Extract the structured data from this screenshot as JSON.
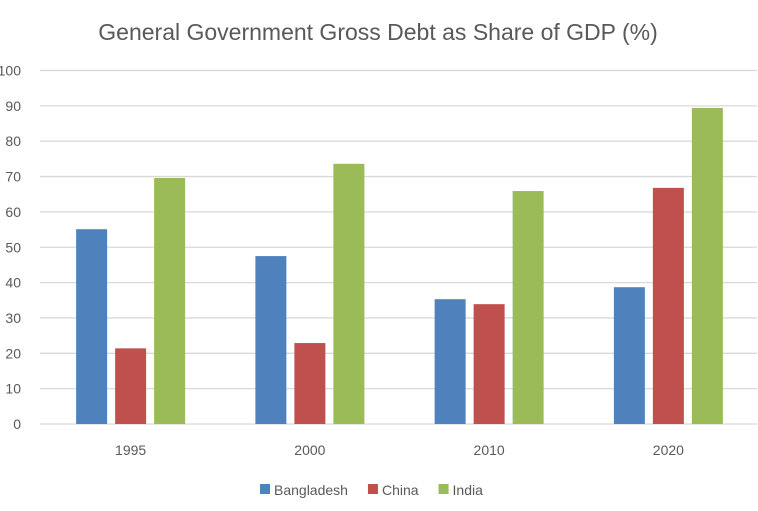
{
  "chart_data": {
    "type": "bar",
    "title": "General Government Gross Debt as Share of GDP (%)",
    "xlabel": "",
    "ylabel": "",
    "categories": [
      "1995",
      "2000",
      "2010",
      "2020"
    ],
    "series": [
      {
        "name": "Bangladesh",
        "color": "#4F81BD",
        "values": [
          55.1,
          47.5,
          35.3,
          38.7
        ]
      },
      {
        "name": "China",
        "color": "#C0504D",
        "values": [
          21.4,
          22.9,
          33.9,
          66.8
        ]
      },
      {
        "name": "India",
        "color": "#9BBB59",
        "values": [
          69.6,
          73.6,
          65.9,
          89.4
        ]
      }
    ],
    "ylim": [
      0,
      100
    ],
    "yticks": [
      "0",
      "10",
      "20",
      "30",
      "40",
      "50",
      "60",
      "70",
      "80",
      "90",
      "100"
    ],
    "grid": true,
    "legend_position": "bottom"
  }
}
